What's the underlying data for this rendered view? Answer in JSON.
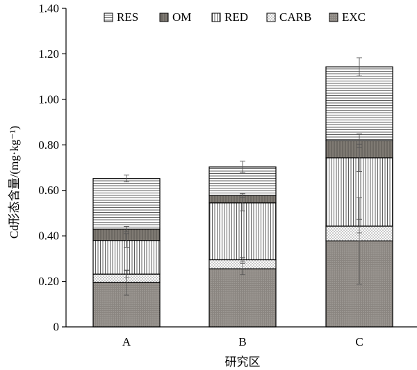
{
  "chart_data": {
    "type": "bar",
    "stacked": true,
    "title": "",
    "xlabel": "研究区",
    "ylabel": "Cd形态含量/(mg·kg⁻¹)",
    "ylim": [
      0,
      1.4
    ],
    "yticks": [
      0,
      0.2,
      0.4,
      0.6,
      0.8,
      1.0,
      1.2,
      1.4
    ],
    "ytick_labels": [
      "0",
      "0.20",
      "0.40",
      "0.60",
      "0.80",
      "1.00",
      "1.20",
      "1.40"
    ],
    "grid": false,
    "legend_position": "top",
    "categories": [
      "A",
      "B",
      "C"
    ],
    "series": [
      {
        "name": "EXC",
        "pattern": "dots-dark",
        "values": [
          0.195,
          0.255,
          0.378
        ],
        "errors": [
          0.055,
          0.025,
          0.19
        ]
      },
      {
        "name": "CARB",
        "pattern": "dots-light",
        "values": [
          0.037,
          0.04,
          0.065
        ],
        "errors": [
          0.015,
          0.01,
          0.03
        ]
      },
      {
        "name": "RED",
        "pattern": "vertical-lines",
        "values": [
          0.148,
          0.25,
          0.3
        ],
        "errors": [
          0.03,
          0.035,
          0.06
        ]
      },
      {
        "name": "OM",
        "pattern": "solid-dark",
        "values": [
          0.05,
          0.033,
          0.075
        ],
        "errors": [
          0.012,
          0.008,
          0.03
        ]
      },
      {
        "name": "RES",
        "pattern": "horizontal-lines",
        "values": [
          0.222,
          0.125,
          0.325
        ],
        "errors": [
          0.015,
          0.025,
          0.04
        ]
      }
    ],
    "legend_order": [
      "RES",
      "OM",
      "RED",
      "CARB",
      "EXC"
    ]
  }
}
